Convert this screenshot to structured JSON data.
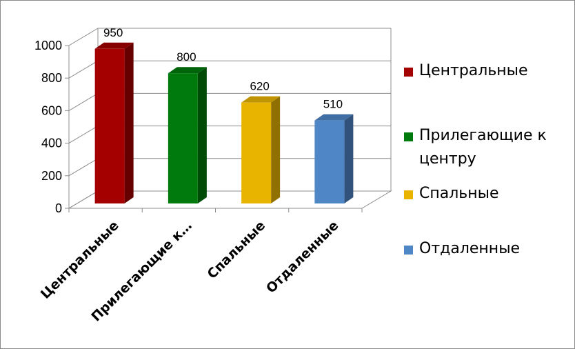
{
  "chart_data": {
    "type": "bar",
    "categories": [
      "Центральные",
      "Прилегающие к центру",
      "Спальные",
      "Отдаленные"
    ],
    "category_tick_labels": [
      "Центральные",
      "Прилегающие к…",
      "Спальные",
      "Отдаленные"
    ],
    "values": [
      950,
      800,
      620,
      510
    ],
    "data_labels": [
      "950",
      "800",
      "620",
      "510"
    ],
    "colors": [
      "#a50000",
      "#007a0c",
      "#e8b400",
      "#4f86c6"
    ],
    "ylim": [
      0,
      1000
    ],
    "yticks": [
      0,
      200,
      400,
      600,
      800,
      1000
    ],
    "grid": true,
    "style": "3d",
    "legend_position": "right",
    "legend": [
      {
        "label": "Центральные",
        "color": "#a50000"
      },
      {
        "label": "Прилегающие к центру",
        "color": "#007a0c"
      },
      {
        "label": "Спальные",
        "color": "#e8b400"
      },
      {
        "label": "Отдаленные",
        "color": "#4f86c6"
      }
    ]
  }
}
